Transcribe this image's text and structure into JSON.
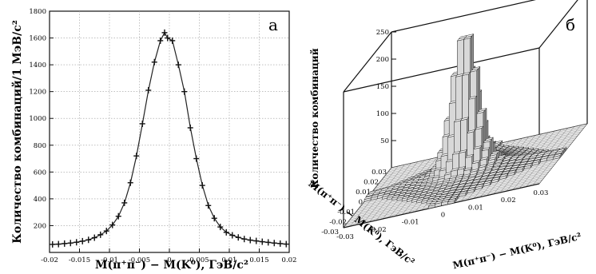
{
  "chart_data": [
    {
      "type": "scatter",
      "panel_label": "а",
      "xlabel": "M(π⁺π⁻) − M(K⁰), ГэВ/c²",
      "ylabel": "Количество комбинаций/1 МэВ/c²",
      "xlim": [
        -0.02,
        0.02
      ],
      "ylim": [
        0,
        1800
      ],
      "grid": true,
      "x_ticks": [
        "-0.02",
        "-0.015",
        "-0.01",
        "-0.005",
        "0",
        "0.005",
        "0.01",
        "0.015",
        "0.02"
      ],
      "y_ticks": [
        "200",
        "400",
        "600",
        "800",
        "1000",
        "1200",
        "1400",
        "1600",
        "1800"
      ],
      "series": [
        {
          "points": [
            [
              -0.0195,
              60
            ],
            [
              -0.0185,
              62
            ],
            [
              -0.0175,
              66
            ],
            [
              -0.0165,
              70
            ],
            [
              -0.0155,
              76
            ],
            [
              -0.0145,
              84
            ],
            [
              -0.0135,
              94
            ],
            [
              -0.0125,
              110
            ],
            [
              -0.0115,
              132
            ],
            [
              -0.0105,
              160
            ],
            [
              -0.0095,
              205
            ],
            [
              -0.0085,
              270
            ],
            [
              -0.0075,
              370
            ],
            [
              -0.0065,
              520
            ],
            [
              -0.0055,
              720
            ],
            [
              -0.0045,
              960
            ],
            [
              -0.0035,
              1210
            ],
            [
              -0.0025,
              1420
            ],
            [
              -0.0015,
              1580
            ],
            [
              -0.0008,
              1640
            ],
            [
              -0.0003,
              1600
            ],
            [
              0.0005,
              1580
            ],
            [
              0.0015,
              1400
            ],
            [
              0.0025,
              1200
            ],
            [
              0.0035,
              930
            ],
            [
              0.0045,
              700
            ],
            [
              0.0055,
              500
            ],
            [
              0.0065,
              350
            ],
            [
              0.0075,
              255
            ],
            [
              0.0085,
              190
            ],
            [
              0.0095,
              150
            ],
            [
              0.0105,
              128
            ],
            [
              0.0115,
              112
            ],
            [
              0.0125,
              100
            ],
            [
              0.0135,
              92
            ],
            [
              0.0145,
              86
            ],
            [
              0.0155,
              80
            ],
            [
              0.0165,
              75
            ],
            [
              0.0175,
              70
            ],
            [
              0.0185,
              66
            ],
            [
              0.0195,
              62
            ]
          ]
        }
      ]
    },
    {
      "type": "histogram-3d",
      "panel_label": "б",
      "xlabel": "M(π⁺π⁻) − M(K⁰), ГэВ/c²",
      "ylabel": "M(π⁺π⁻) − M(K⁰), ГэВ/c²",
      "zlabel": "Количество комбинаций",
      "zlim": [
        0,
        250
      ],
      "x_ticks": [
        "-0.03",
        "-0.02",
        "-0.01",
        "0",
        "0.01",
        "0.02",
        "0.03"
      ],
      "y_ticks": [
        "-0.03",
        "-0.02",
        "-0.01",
        "0",
        "0.01",
        "0.02",
        "0.03"
      ],
      "z_ticks": [
        "50",
        "100",
        "150",
        "200",
        "250"
      ],
      "peak_height": 245
    }
  ]
}
